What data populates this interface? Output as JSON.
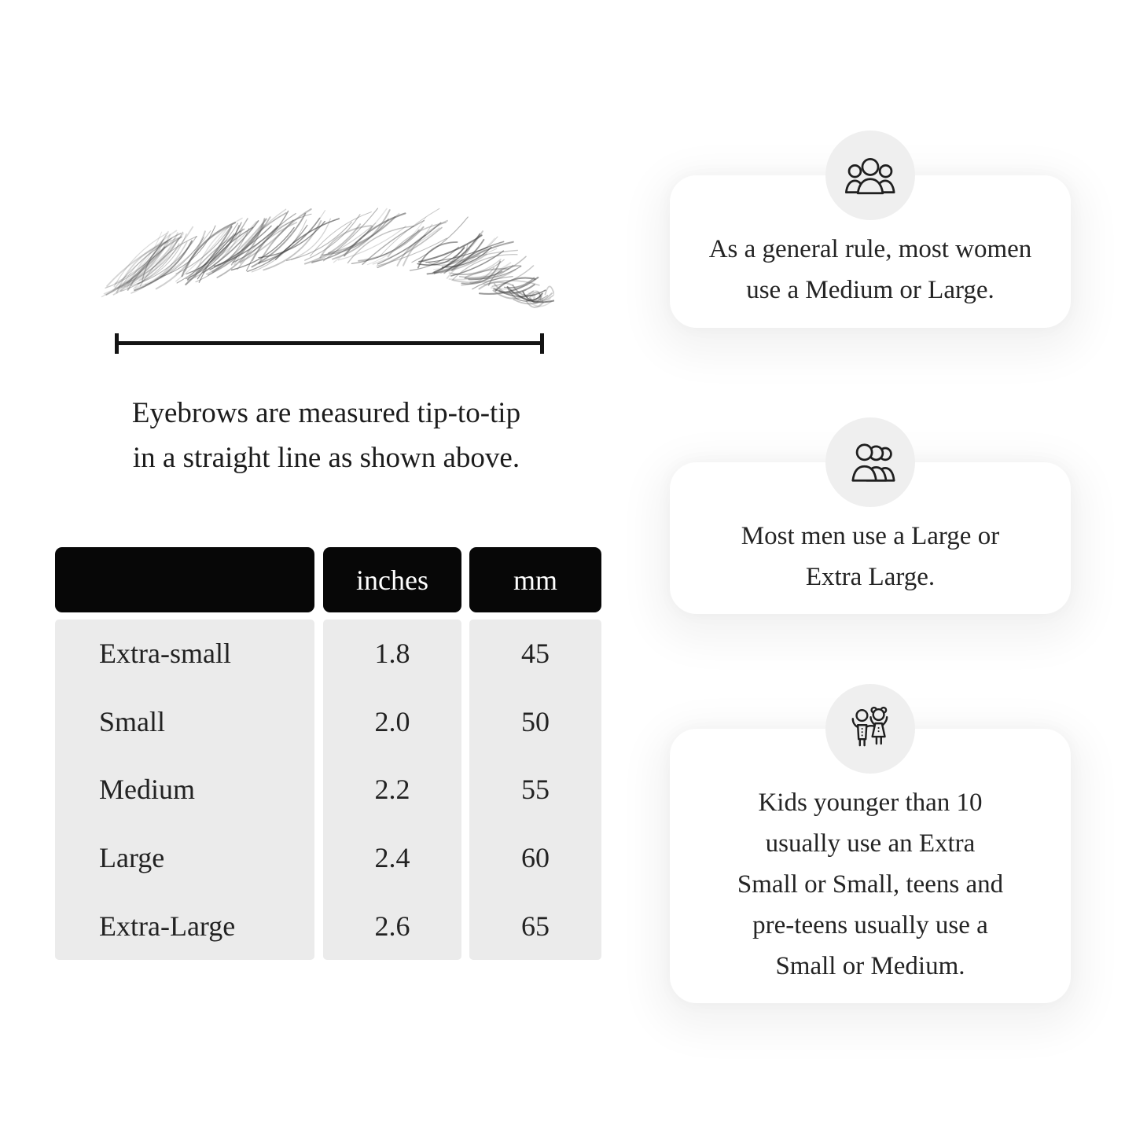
{
  "colors": {
    "text": "#1d1d1d",
    "table_header_bg": "#070707",
    "table_header_text": "#ffffff",
    "table_body_bg": "#ebebeb",
    "icon_circle_bg": "#efefef",
    "card_bg": "#ffffff"
  },
  "diagram": {
    "caption": "Eyebrows are measured tip-to-tip\nin a straight line as shown above."
  },
  "table": {
    "headers": {
      "size": "",
      "inches": "inches",
      "mm": "mm"
    },
    "rows": [
      {
        "label": "Extra-small",
        "inches": "1.8",
        "mm": "45"
      },
      {
        "label": "Small",
        "inches": "2.0",
        "mm": "50"
      },
      {
        "label": "Medium",
        "inches": "2.2",
        "mm": "55"
      },
      {
        "label": "Large",
        "inches": "2.4",
        "mm": "60"
      },
      {
        "label": "Extra-Large",
        "inches": "2.6",
        "mm": "65"
      }
    ]
  },
  "cards": [
    {
      "icon": "women-group-icon",
      "text": "As a general rule, most women\nuse a Medium or Large."
    },
    {
      "icon": "men-group-icon",
      "text": "Most men use a Large or\nExtra Large."
    },
    {
      "icon": "children-icon",
      "text": "Kids younger than 10\nusually use an Extra\nSmall or Small, teens and\npre-teens usually use a\nSmall or Medium."
    }
  ]
}
